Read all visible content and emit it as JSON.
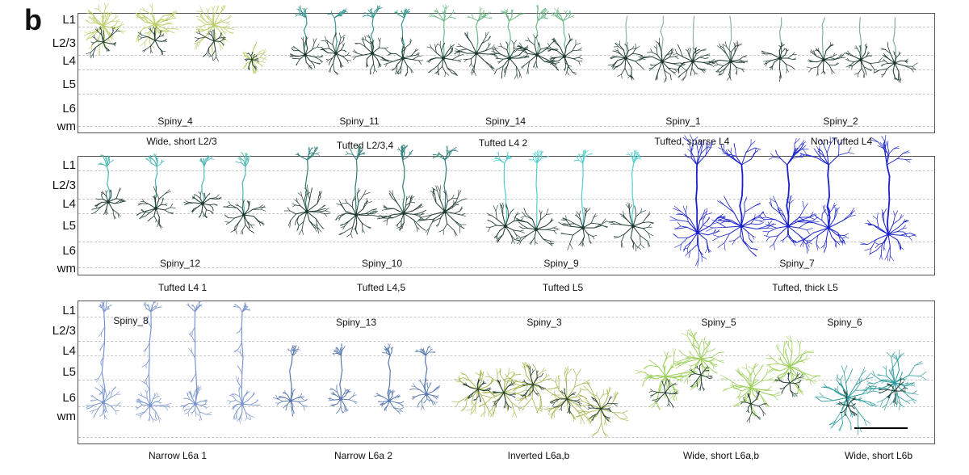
{
  "panel_letter": "b",
  "layers": [
    "L1",
    "L2/3",
    "L4",
    "L5",
    "L6",
    "wm"
  ],
  "rows": [
    {
      "cell_names": [
        "Spiny_4",
        "Spiny_11",
        "Spiny_14",
        "Spiny_1",
        "Spiny_2"
      ],
      "type_labels": [
        "Wide, short L2/3",
        "Tufted L2/3,4",
        "Tufted L4 2",
        "Tufted, sparse L4",
        "Non-Tufted L4"
      ]
    },
    {
      "cell_names": [
        "Spiny_12",
        "Spiny_10",
        "Spiny_9",
        "Spiny_7"
      ],
      "type_labels": [
        "Tufted L4 1",
        "Tufted L4,5",
        "Tufted L5",
        "Tufted, thick L5"
      ]
    },
    {
      "cell_names": [
        "Spiny_8",
        "Spiny_13",
        "Spiny_3",
        "Spiny_5",
        "Spiny_6"
      ],
      "type_labels": [
        "Narrow L6a 1",
        "Narrow L6a 2",
        "Inverted L6a,b",
        "Wide, short L6a,b",
        "Wide, short L6b"
      ]
    }
  ],
  "colors": {
    "spiny_4": "#b9cf6a",
    "spiny_11": "#3a9a94",
    "spiny_14": "#6fb98a",
    "spiny_1": "#8fb79a",
    "spiny_2": "#7fb3a0",
    "spiny_12": "#4cb7b3",
    "spiny_10": "#2f7d78",
    "spiny_9": "#52cfcf",
    "spiny_7": "#1a22c8",
    "spiny_8": "#7a95cf",
    "spiny_13": "#5a7ab0",
    "spiny_3": "#a9b552",
    "spiny_5": "#9ccf5a",
    "spiny_6": "#2a9a9a",
    "dark": "#1f3a30"
  }
}
